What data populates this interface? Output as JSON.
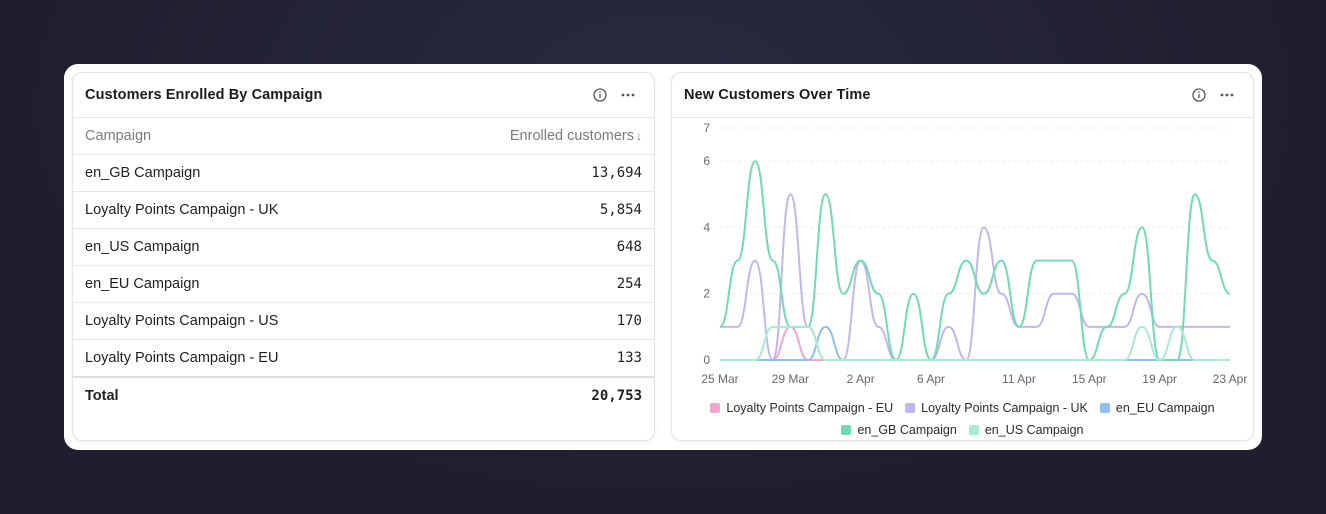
{
  "left_card": {
    "title": "Customers Enrolled By Campaign",
    "columns": {
      "campaign": "Campaign",
      "enrolled": "Enrolled customers",
      "sort_icon": "arrow-down-icon"
    },
    "rows": [
      {
        "campaign": "en_GB Campaign",
        "enrolled": "13,694"
      },
      {
        "campaign": "Loyalty Points Campaign - UK",
        "enrolled": "5,854"
      },
      {
        "campaign": "en_US Campaign",
        "enrolled": "648"
      },
      {
        "campaign": "en_EU Campaign",
        "enrolled": "254"
      },
      {
        "campaign": "Loyalty Points Campaign - US",
        "enrolled": "170"
      },
      {
        "campaign": "Loyalty Points Campaign - EU",
        "enrolled": "133"
      }
    ],
    "total": {
      "label": "Total",
      "value": "20,753"
    }
  },
  "right_card": {
    "title": "New Customers Over Time"
  },
  "chart_data": {
    "type": "line",
    "title": "New Customers Over Time",
    "x": [
      "25 Mar",
      "26 Mar",
      "27 Mar",
      "28 Mar",
      "29 Mar",
      "30 Mar",
      "31 Mar",
      "1 Apr",
      "2 Apr",
      "3 Apr",
      "4 Apr",
      "5 Apr",
      "6 Apr",
      "7 Apr",
      "8 Apr",
      "9 Apr",
      "10 Apr",
      "11 Apr",
      "12 Apr",
      "13 Apr",
      "14 Apr",
      "15 Apr",
      "16 Apr",
      "17 Apr",
      "18 Apr",
      "19 Apr",
      "20 Apr",
      "21 Apr",
      "22 Apr",
      "23 Apr"
    ],
    "x_tick_labels": [
      "25 Mar",
      "29 Mar",
      "2 Apr",
      "6 Apr",
      "11 Apr",
      "15 Apr",
      "19 Apr",
      "23 Apr"
    ],
    "y_ticks": [
      0,
      2,
      4,
      6,
      7
    ],
    "ylim": [
      0,
      7
    ],
    "grid": true,
    "legend_position": "bottom",
    "series": [
      {
        "name": "Loyalty Points Campaign - EU",
        "color": "#f2a6cf",
        "values": [
          0,
          0,
          0,
          0,
          1,
          0,
          0,
          0,
          0,
          0,
          0,
          0,
          0,
          0,
          0,
          0,
          0,
          0,
          0,
          0,
          0,
          0,
          0,
          0,
          0,
          0,
          0,
          0,
          0,
          0
        ]
      },
      {
        "name": "Loyalty Points Campaign - UK",
        "color": "#c3b5ee",
        "values": [
          1,
          1,
          3,
          0,
          5,
          1,
          0,
          0,
          3,
          1,
          0,
          0,
          0,
          1,
          0,
          4,
          2,
          1,
          1,
          2,
          2,
          1,
          1,
          1,
          2,
          1,
          1,
          1,
          1,
          1
        ]
      },
      {
        "name": "en_EU Campaign",
        "color": "#8ec0f0",
        "values": [
          0,
          0,
          0,
          0,
          0,
          0,
          1,
          0,
          0,
          0,
          0,
          0,
          0,
          0,
          0,
          0,
          0,
          0,
          0,
          0,
          0,
          0,
          0,
          0,
          0,
          0,
          0,
          0,
          0,
          0
        ]
      },
      {
        "name": "en_GB Campaign",
        "color": "#6fdcb0",
        "values": [
          1,
          3,
          6,
          3,
          1,
          1,
          5,
          2,
          3,
          2,
          0,
          2,
          0,
          2,
          3,
          2,
          3,
          1,
          3,
          3,
          3,
          0,
          1,
          2,
          4,
          0,
          0,
          5,
          3,
          2
        ]
      },
      {
        "name": "en_US Campaign",
        "color": "#a8ecd0",
        "values": [
          0,
          0,
          0,
          1,
          1,
          1,
          0,
          0,
          0,
          0,
          0,
          0,
          0,
          0,
          0,
          0,
          0,
          0,
          0,
          0,
          0,
          0,
          0,
          0,
          1,
          0,
          1,
          0,
          0,
          0
        ]
      }
    ]
  }
}
